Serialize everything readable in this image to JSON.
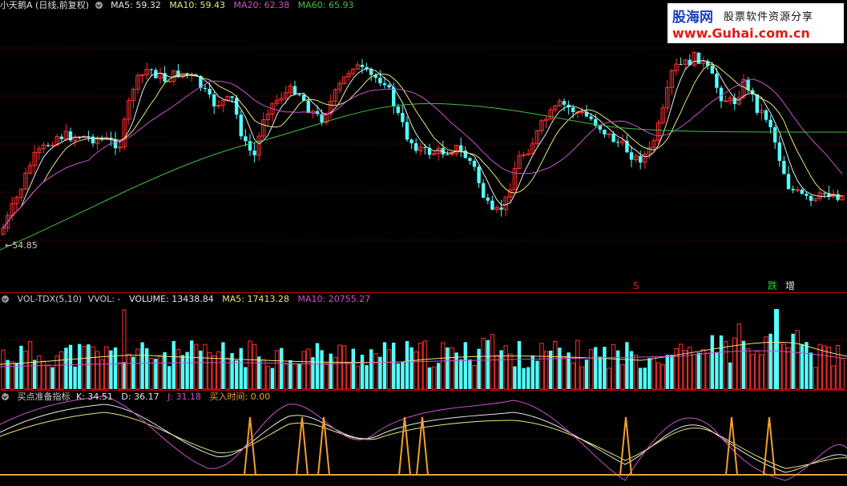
{
  "main": {
    "title": "小天鹅A (日线,前复权)",
    "ma": [
      {
        "label": "MA5: 59.32",
        "color": "#e8e8e8"
      },
      {
        "label": "MA10: 59.43",
        "color": "#e8e87a"
      },
      {
        "label": "MA20: 62.38",
        "color": "#d050d0"
      },
      {
        "label": "MA60: 65.93",
        "color": "#40c040"
      }
    ],
    "low_marker": "←54.85",
    "signals": [
      {
        "text": "S",
        "color": "#e02020"
      },
      {
        "text": "跌",
        "color": "#20d020"
      },
      {
        "text": "增",
        "color": "#e0e0e0"
      }
    ]
  },
  "volume": {
    "title": "VOL-TDX(5,10)",
    "vvol": "VVOL: -",
    "volume": "VOLUME: 13438.84",
    "ma5": "MA5: 17413.28",
    "ma10": "MA10: 20755.27",
    "colors": {
      "volume": "#e8e8e8",
      "ma5": "#e8e87a",
      "ma10": "#d050d0"
    }
  },
  "kdj": {
    "title": "买点准备指标",
    "k": "K: 34.51",
    "d": "D: 36.17",
    "j": "J: 31.18",
    "buy": "买入时间: 0.00",
    "colors": {
      "k": "#e8e8e8",
      "d": "#e8e8e8",
      "j": "#d050d0",
      "buy": "#f0a030"
    }
  },
  "watermark": {
    "brand": "股海网",
    "tagline": "股票软件资源分享",
    "url": "www.Guhai.com.cn"
  },
  "colors": {
    "up": "#ff3030",
    "down": "#54ffff",
    "grid": "#6a0000"
  }
}
